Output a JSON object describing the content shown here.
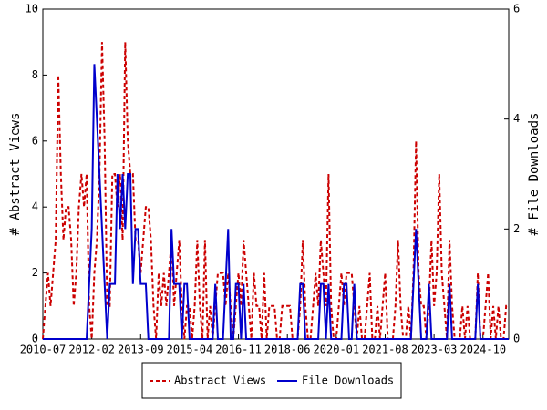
{
  "chart_data": {
    "type": "line",
    "categories": [
      "2010-07",
      null,
      null,
      null,
      null,
      null,
      null,
      null,
      null,
      null,
      null,
      null,
      null,
      null,
      null,
      null,
      null,
      null,
      null,
      "2012-02",
      null,
      null,
      null,
      null,
      null,
      null,
      null,
      null,
      null,
      null,
      null,
      null,
      null,
      null,
      null,
      null,
      null,
      null,
      "2013-09",
      null,
      null,
      null,
      null,
      null,
      null,
      null,
      null,
      null,
      null,
      null,
      null,
      null,
      null,
      null,
      null,
      null,
      null,
      "2015-04",
      null,
      null,
      null,
      null,
      null,
      null,
      null,
      null,
      null,
      null,
      null,
      null,
      null,
      null,
      null,
      null,
      null,
      null,
      "2016-11",
      null,
      null,
      null,
      null,
      null,
      null,
      null,
      null,
      null,
      null,
      null,
      null,
      null,
      null,
      null,
      null,
      null,
      null,
      "2018-06",
      null,
      null,
      null,
      null,
      null,
      null,
      null,
      null,
      null,
      null,
      null,
      null,
      null,
      null,
      null,
      null,
      null,
      null,
      "2020-01",
      null,
      null,
      null,
      null,
      null,
      null,
      null,
      null,
      null,
      null,
      null,
      null,
      null,
      null,
      null,
      null,
      null,
      null,
      "2021-08",
      null,
      null,
      null,
      null,
      null,
      null,
      null,
      null,
      null,
      null,
      null,
      null,
      null,
      null,
      null,
      null,
      null,
      null,
      "2023-03",
      null,
      null,
      null,
      null,
      null,
      null,
      null,
      null,
      null,
      null,
      null,
      null,
      null,
      null,
      null,
      null,
      null,
      null,
      "2024-10",
      null,
      null,
      null,
      null,
      null,
      null,
      null,
      null,
      null,
      null
    ],
    "series": [
      {
        "name": "Abstract Views",
        "color": "#cc0000",
        "line_style": "dashed",
        "axis": "y",
        "values": [
          0,
          1,
          2,
          1,
          2,
          3,
          8,
          5,
          3,
          4,
          4,
          3,
          1,
          2,
          4,
          5,
          4,
          5,
          1,
          0,
          2,
          3,
          5,
          9,
          6,
          1,
          1,
          5,
          5,
          4,
          5,
          3,
          9,
          6,
          5,
          5,
          3,
          3,
          2,
          3,
          4,
          4,
          3,
          1,
          0,
          2,
          1,
          2,
          1,
          2,
          3,
          1,
          2,
          3,
          1,
          0,
          1,
          1,
          0,
          1,
          3,
          1,
          0,
          3,
          0,
          1,
          0,
          1,
          2,
          2,
          2,
          1,
          2,
          1,
          0,
          1,
          2,
          1,
          3,
          2,
          1,
          0,
          2,
          1,
          1,
          0,
          2,
          0,
          1,
          1,
          1,
          0,
          0,
          1,
          1,
          1,
          1,
          0,
          0,
          0,
          1,
          3,
          1,
          0,
          0,
          1,
          2,
          1,
          3,
          2,
          1,
          5,
          1,
          0,
          0,
          1,
          2,
          1,
          2,
          2,
          2,
          1,
          0,
          1,
          0,
          0,
          1,
          2,
          0,
          0,
          1,
          0,
          1,
          2,
          0,
          0,
          0,
          1,
          3,
          1,
          0,
          0,
          1,
          0,
          2,
          6,
          2,
          1,
          1,
          0,
          1,
          3,
          1,
          2,
          5,
          2,
          1,
          0,
          3,
          1,
          0,
          0,
          0,
          1,
          0,
          1,
          0,
          0,
          0,
          2,
          0,
          0,
          1,
          2,
          0,
          1,
          0,
          1,
          0,
          0,
          1,
          1
        ]
      },
      {
        "name": "File Downloads",
        "color": "#0000cc",
        "line_style": "solid",
        "axis": "y2",
        "values": [
          0,
          0,
          0,
          0,
          0,
          0,
          0,
          0,
          0,
          0,
          0,
          0,
          0,
          0,
          0,
          0,
          0,
          0,
          1,
          2,
          5,
          4,
          3,
          2,
          1,
          0,
          1,
          1,
          1,
          3,
          2,
          3,
          2,
          3,
          3,
          1,
          2,
          2,
          1,
          1,
          1,
          0,
          0,
          0,
          0,
          0,
          0,
          0,
          0,
          0,
          2,
          1,
          1,
          1,
          0,
          1,
          1,
          0,
          0,
          0,
          0,
          0,
          0,
          0,
          0,
          0,
          0,
          1,
          0,
          0,
          0,
          1,
          2,
          0,
          0,
          1,
          1,
          0,
          1,
          0,
          0,
          0,
          0,
          0,
          0,
          0,
          0,
          0,
          0,
          0,
          0,
          0,
          0,
          0,
          0,
          0,
          0,
          0,
          0,
          0,
          1,
          1,
          0,
          0,
          0,
          0,
          0,
          0,
          1,
          1,
          0,
          1,
          0,
          0,
          0,
          0,
          0,
          1,
          1,
          0,
          0,
          1,
          0,
          0,
          0,
          0,
          0,
          0,
          0,
          0,
          0,
          0,
          0,
          0,
          0,
          0,
          0,
          0,
          0,
          0,
          0,
          0,
          0,
          0,
          1,
          2,
          1,
          0,
          0,
          0,
          1,
          0,
          0,
          0,
          0,
          0,
          0,
          0,
          1,
          0,
          0,
          0,
          0,
          0,
          0,
          0,
          0,
          0,
          0,
          1,
          0,
          0,
          0,
          0,
          0,
          0,
          0,
          0,
          0,
          0,
          0,
          0
        ]
      }
    ],
    "ylabel": "# Abstract Views",
    "y2label": "# File Downloads",
    "ylim": [
      0,
      10
    ],
    "yticks": [
      0,
      2,
      4,
      6,
      8,
      10
    ],
    "y2lim": [
      0,
      6
    ],
    "y2ticks": [
      0,
      2,
      4,
      6
    ],
    "legend": "bottom"
  }
}
